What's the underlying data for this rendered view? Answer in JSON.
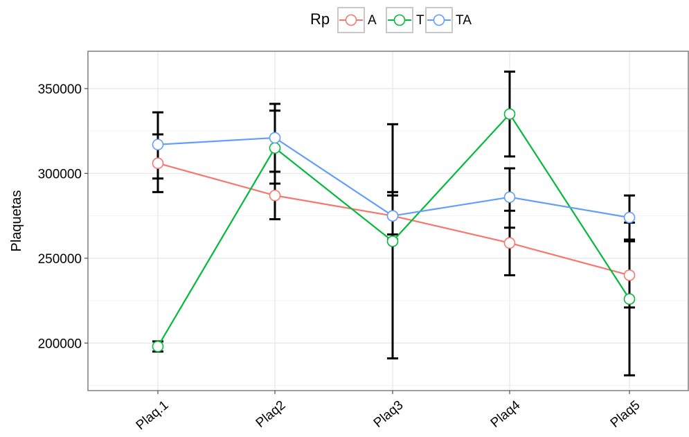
{
  "chart_data": {
    "type": "line",
    "title": "",
    "xlabel": "",
    "ylabel": "Plaquetas",
    "categories": [
      "Plaq.1",
      "Plaq2",
      "Plaq3",
      "Plaq4",
      "Plaq5"
    ],
    "ylim": [
      172000,
      372000
    ],
    "y_ticks": [
      200000,
      250000,
      300000,
      350000
    ],
    "y_tick_labels": [
      "200000",
      "250000",
      "300000",
      "350000"
    ],
    "legend": {
      "title": "Rp",
      "placement": "top"
    },
    "grid": true,
    "series": [
      {
        "name": "A",
        "color": "#f8766d",
        "values": [
          306000,
          287000,
          275000,
          259000,
          240000
        ],
        "error_low": [
          289000,
          273000,
          261000,
          240000,
          221000
        ],
        "error_high": [
          323000,
          301000,
          289000,
          278000,
          260000
        ]
      },
      {
        "name": "T",
        "color": "#00ba38",
        "values": [
          198000,
          315000,
          260000,
          335000,
          226000
        ],
        "error_low": [
          195000,
          294000,
          191000,
          310000,
          181000
        ],
        "error_high": [
          201000,
          337000,
          329000,
          360000,
          271000
        ]
      },
      {
        "name": "TA",
        "color": "#619cff",
        "values": [
          317000,
          321000,
          275000,
          286000,
          274000
        ],
        "error_low": [
          297000,
          301000,
          264000,
          268000,
          261000
        ],
        "error_high": [
          336000,
          341000,
          287000,
          303000,
          287000
        ]
      }
    ]
  }
}
